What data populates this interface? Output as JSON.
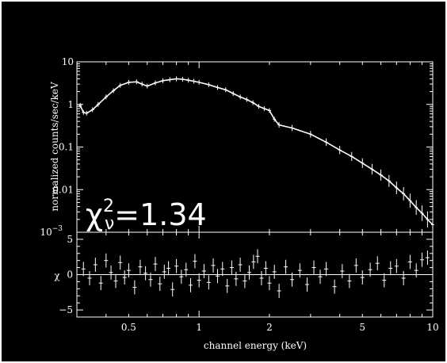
{
  "colors": {
    "background": "#000000",
    "foreground": "#ffffff"
  },
  "chart_data": [
    {
      "type": "line",
      "title": "",
      "xlabel": "channel energy (keV)",
      "ylabel": "normalized counts/sec/keV",
      "xscale": "log",
      "yscale": "log",
      "xlim": [
        0.3,
        10
      ],
      "ylim": [
        0.001,
        10
      ],
      "x_tick_labels": [
        "0.5",
        "1",
        "2",
        "5",
        "10"
      ],
      "y_tick_labels": [
        {
          "base": "10",
          "exp": "−3",
          "value": 0.001
        },
        {
          "base": "0.01",
          "exp": "",
          "value": 0.01
        },
        {
          "base": "0.1",
          "exp": "",
          "value": 0.1
        },
        {
          "base": "1",
          "exp": "",
          "value": 1
        },
        {
          "base": "10",
          "exp": "",
          "value": 10
        }
      ],
      "annotation": {
        "chi": "χ",
        "sup": "2",
        "sub": "ν",
        "text": "=1.34"
      },
      "series": [
        {
          "x": [
            0.31,
            0.32,
            0.33,
            0.35,
            0.37,
            0.4,
            0.43,
            0.46,
            0.5,
            0.54,
            0.57,
            0.6,
            0.65,
            0.7,
            0.75,
            0.8,
            0.85,
            0.9,
            0.95,
            1.0,
            1.1,
            1.2,
            1.3,
            1.4,
            1.5,
            1.6,
            1.7,
            1.8,
            1.9,
            2.0,
            2.1,
            2.2,
            2.5,
            3.0,
            3.5,
            4.0,
            4.5,
            5.0,
            5.5,
            6.0,
            6.5,
            7.0,
            7.5,
            8.0,
            8.5,
            9.0,
            9.5,
            10.0
          ],
          "y": [
            0.95,
            0.65,
            0.62,
            0.75,
            1.0,
            1.5,
            2.1,
            2.8,
            3.3,
            3.4,
            3.0,
            2.7,
            3.2,
            3.6,
            3.8,
            4.0,
            3.9,
            3.7,
            3.5,
            3.3,
            2.9,
            2.5,
            2.2,
            1.8,
            1.5,
            1.3,
            1.1,
            0.9,
            0.8,
            0.72,
            0.45,
            0.33,
            0.28,
            0.2,
            0.13,
            0.085,
            0.06,
            0.042,
            0.03,
            0.022,
            0.016,
            0.011,
            0.008,
            0.0055,
            0.0038,
            0.0028,
            0.002,
            0.0015
          ]
        }
      ]
    },
    {
      "type": "scatter",
      "title": "",
      "xlabel": "channel energy (keV)",
      "ylabel": "χ",
      "xscale": "log",
      "xlim": [
        0.3,
        10
      ],
      "ylim": [
        -6,
        6
      ],
      "y_tick_labels": [
        {
          "label": "5",
          "value": 5
        },
        {
          "label": "0",
          "value": 0
        },
        {
          "label": "−5",
          "value": -5
        }
      ],
      "series": [
        {
          "x": [
            0.32,
            0.34,
            0.36,
            0.38,
            0.4,
            0.42,
            0.44,
            0.46,
            0.48,
            0.5,
            0.53,
            0.56,
            0.59,
            0.62,
            0.65,
            0.68,
            0.71,
            0.74,
            0.77,
            0.8,
            0.84,
            0.88,
            0.92,
            0.96,
            1.0,
            1.05,
            1.1,
            1.15,
            1.2,
            1.26,
            1.32,
            1.38,
            1.44,
            1.5,
            1.57,
            1.64,
            1.71,
            1.78,
            1.85,
            1.93,
            2.0,
            2.1,
            2.2,
            2.35,
            2.5,
            2.7,
            2.9,
            3.1,
            3.3,
            3.5,
            3.8,
            4.1,
            4.4,
            4.7,
            5.0,
            5.4,
            5.8,
            6.2,
            6.6,
            7.0,
            7.5,
            8.0,
            8.5,
            9.0,
            9.5
          ],
          "y": [
            0.8,
            -0.5,
            1.4,
            -1.2,
            2.0,
            0.3,
            -0.9,
            1.7,
            -0.4,
            0.6,
            -1.8,
            1.1,
            0.2,
            -0.7,
            1.5,
            -1.3,
            0.4,
            0.9,
            -2.1,
            1.2,
            -0.3,
            0.7,
            -1.5,
            1.9,
            -0.8,
            0.5,
            -1.1,
            1.3,
            -0.2,
            0.8,
            -1.6,
            1.0,
            -0.6,
            1.4,
            -0.9,
            0.3,
            1.8,
            2.6,
            -0.5,
            0.9,
            -1.2,
            0.4,
            -2.3,
            1.1,
            -0.7,
            0.6,
            -1.4,
            1.0,
            -0.3,
            0.8,
            -1.7,
            0.5,
            -0.9,
            1.3,
            -0.4,
            0.7,
            1.6,
            -0.8,
            0.9,
            1.2,
            -0.5,
            1.8,
            0.6,
            2.1,
            2.4
          ],
          "err": 1.0
        }
      ]
    }
  ]
}
